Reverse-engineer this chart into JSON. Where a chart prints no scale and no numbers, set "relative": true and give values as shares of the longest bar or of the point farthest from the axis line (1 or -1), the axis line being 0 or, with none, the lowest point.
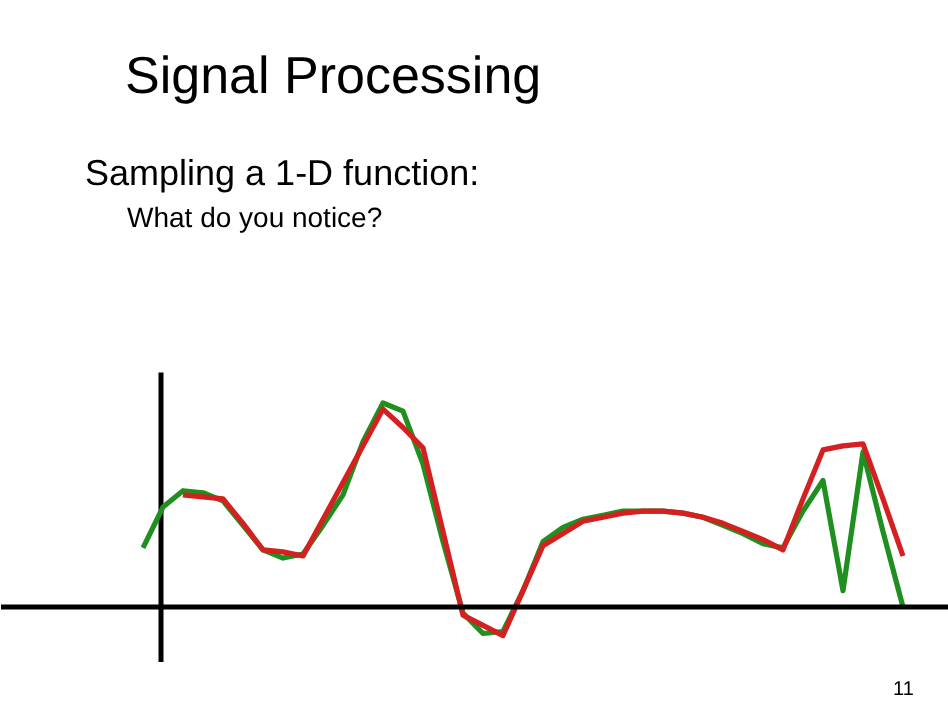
{
  "chart_data": {
    "type": "line",
    "title": "Signal Processing",
    "annotations": [
      "Sampling a 1-D function:",
      "What do you notice?",
      "11"
    ],
    "relative": true,
    "categories": [
      null,
      null,
      null,
      null,
      null,
      null,
      null,
      null,
      null,
      null,
      null,
      null,
      null,
      null,
      null,
      null,
      null,
      null,
      null,
      null,
      null,
      null,
      null,
      null,
      null,
      null,
      null,
      null,
      null,
      null,
      null,
      null,
      null,
      null,
      null,
      null,
      null,
      null,
      null
    ],
    "series": [
      {
        "color": "#1f8f1f",
        "values": [
          0.29,
          0.49,
          0.57,
          0.56,
          0.52,
          0.4,
          0.28,
          0.24,
          0.26,
          0.4,
          0.55,
          0.81,
          1.0,
          0.96,
          0.7,
          0.32,
          -0.03,
          -0.13,
          -0.12,
          0.08,
          0.32,
          0.39,
          0.43,
          0.45,
          0.47,
          0.47,
          0.47,
          0.46,
          0.44,
          0.4,
          0.36,
          0.31,
          0.29,
          0.47,
          0.62,
          0.08,
          0.76,
          0.37,
          0.0
        ]
      },
      {
        "color": "#d42020",
        "values": [
          null,
          null,
          0.55,
          0.54,
          0.53,
          0.41,
          0.28,
          0.27,
          0.25,
          0.43,
          0.61,
          0.79,
          0.97,
          0.88,
          0.78,
          0.37,
          -0.04,
          -0.09,
          -0.14,
          0.08,
          0.3,
          0.36,
          0.42,
          0.44,
          0.46,
          0.47,
          0.47,
          0.46,
          0.44,
          0.41,
          0.37,
          0.33,
          0.28,
          0.53,
          0.77,
          0.79,
          0.8,
          0.53,
          0.25
        ]
      }
    ]
  }
}
